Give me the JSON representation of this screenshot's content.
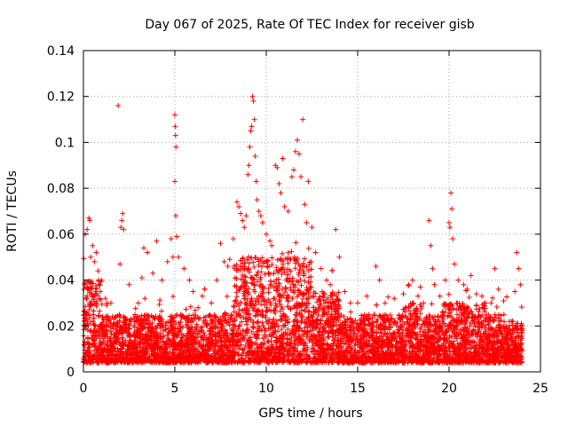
{
  "chart_data": {
    "type": "scatter",
    "title": "Day 067 of 2025, Rate Of TEC Index for receiver gisb",
    "xlabel": "GPS time / hours",
    "ylabel": "ROTI / TECUs",
    "xlim": [
      0,
      25
    ],
    "ylim": [
      0,
      0.14
    ],
    "xticks": [
      "0",
      "5",
      "10",
      "15",
      "20",
      "25"
    ],
    "yticks": [
      "0",
      "0.02",
      "0.04",
      "0.06",
      "0.08",
      "0.1",
      "0.12",
      "0.14"
    ],
    "grid": true,
    "marker": "plus",
    "color": "#ff0000",
    "series": [
      {
        "points": [
          [
            0.1,
            0.06
          ],
          [
            0.2,
            0.062
          ],
          [
            0.3,
            0.067
          ],
          [
            0.35,
            0.066
          ],
          [
            0.4,
            0.05
          ],
          [
            0.5,
            0.055
          ],
          [
            0.6,
            0.048
          ],
          [
            0.7,
            0.052
          ],
          [
            0.8,
            0.044
          ],
          [
            1.0,
            0.04
          ],
          [
            1.2,
            0.032
          ],
          [
            1.5,
            0.03
          ],
          [
            1.9,
            0.116
          ],
          [
            2.0,
            0.047
          ],
          [
            2.05,
            0.063
          ],
          [
            2.1,
            0.066
          ],
          [
            2.15,
            0.069
          ],
          [
            2.2,
            0.062
          ],
          [
            2.5,
            0.038
          ],
          [
            3.0,
            0.03
          ],
          [
            3.2,
            0.041
          ],
          [
            3.3,
            0.054
          ],
          [
            3.5,
            0.052
          ],
          [
            3.8,
            0.043
          ],
          [
            4.0,
            0.057
          ],
          [
            4.3,
            0.04
          ],
          [
            4.6,
            0.048
          ],
          [
            4.8,
            0.058
          ],
          [
            4.9,
            0.05
          ],
          [
            5.0,
            0.112
          ],
          [
            5.02,
            0.107
          ],
          [
            5.04,
            0.103
          ],
          [
            5.06,
            0.098
          ],
          [
            5.0,
            0.083
          ],
          [
            5.05,
            0.068
          ],
          [
            5.1,
            0.059
          ],
          [
            5.2,
            0.05
          ],
          [
            5.5,
            0.045
          ],
          [
            5.8,
            0.04
          ],
          [
            6.0,
            0.035
          ],
          [
            6.5,
            0.033
          ],
          [
            7.0,
            0.03
          ],
          [
            7.3,
            0.04
          ],
          [
            7.5,
            0.056
          ],
          [
            7.7,
            0.048
          ],
          [
            7.9,
            0.046
          ],
          [
            8.0,
            0.049
          ],
          [
            8.2,
            0.058
          ],
          [
            8.4,
            0.074
          ],
          [
            8.5,
            0.072
          ],
          [
            8.6,
            0.069
          ],
          [
            8.7,
            0.066
          ],
          [
            8.8,
            0.063
          ],
          [
            8.9,
            0.068
          ],
          [
            9.0,
            0.086
          ],
          [
            9.05,
            0.09
          ],
          [
            9.1,
            0.098
          ],
          [
            9.15,
            0.105
          ],
          [
            9.2,
            0.107
          ],
          [
            9.25,
            0.12
          ],
          [
            9.3,
            0.118
          ],
          [
            9.35,
            0.11
          ],
          [
            9.4,
            0.094
          ],
          [
            9.45,
            0.083
          ],
          [
            9.5,
            0.075
          ],
          [
            9.6,
            0.07
          ],
          [
            9.7,
            0.068
          ],
          [
            9.8,
            0.065
          ],
          [
            10.0,
            0.06
          ],
          [
            10.2,
            0.057
          ],
          [
            10.3,
            0.055
          ],
          [
            10.5,
            0.09
          ],
          [
            10.6,
            0.089
          ],
          [
            10.7,
            0.082
          ],
          [
            10.8,
            0.078
          ],
          [
            10.9,
            0.093
          ],
          [
            11.0,
            0.072
          ],
          [
            11.2,
            0.07
          ],
          [
            11.4,
            0.085
          ],
          [
            11.5,
            0.088
          ],
          [
            11.6,
            0.096
          ],
          [
            11.7,
            0.101
          ],
          [
            11.8,
            0.095
          ],
          [
            11.9,
            0.085
          ],
          [
            12.0,
            0.11
          ],
          [
            12.1,
            0.073
          ],
          [
            12.2,
            0.065
          ],
          [
            12.3,
            0.083
          ],
          [
            12.5,
            0.063
          ],
          [
            12.7,
            0.052
          ],
          [
            13.0,
            0.045
          ],
          [
            13.3,
            0.04
          ],
          [
            13.5,
            0.038
          ],
          [
            13.8,
            0.062
          ],
          [
            14.0,
            0.05
          ],
          [
            14.3,
            0.035
          ],
          [
            14.6,
            0.03
          ],
          [
            15.0,
            0.03
          ],
          [
            15.5,
            0.033
          ],
          [
            16.0,
            0.046
          ],
          [
            16.2,
            0.04
          ],
          [
            16.5,
            0.03
          ],
          [
            17.0,
            0.032
          ],
          [
            17.5,
            0.034
          ],
          [
            17.8,
            0.038
          ],
          [
            18.0,
            0.04
          ],
          [
            18.3,
            0.033
          ],
          [
            18.6,
            0.03
          ],
          [
            18.9,
            0.066
          ],
          [
            19.0,
            0.055
          ],
          [
            19.1,
            0.045
          ],
          [
            19.2,
            0.038
          ],
          [
            19.5,
            0.033
          ],
          [
            19.8,
            0.04
          ],
          [
            20.0,
            0.065
          ],
          [
            20.05,
            0.063
          ],
          [
            20.1,
            0.078
          ],
          [
            20.15,
            0.071
          ],
          [
            20.2,
            0.058
          ],
          [
            20.3,
            0.047
          ],
          [
            20.5,
            0.04
          ],
          [
            20.8,
            0.038
          ],
          [
            21.0,
            0.036
          ],
          [
            21.2,
            0.042
          ],
          [
            21.5,
            0.034
          ],
          [
            21.8,
            0.033
          ],
          [
            22.0,
            0.03
          ],
          [
            22.3,
            0.03
          ],
          [
            22.5,
            0.045
          ],
          [
            22.7,
            0.036
          ],
          [
            23.0,
            0.025
          ],
          [
            23.3,
            0.022
          ],
          [
            23.6,
            0.035
          ],
          [
            23.7,
            0.052
          ],
          [
            23.8,
            0.045
          ],
          [
            23.9,
            0.038
          ]
        ]
      }
    ]
  }
}
